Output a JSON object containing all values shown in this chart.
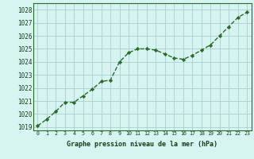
{
  "x": [
    0,
    1,
    2,
    3,
    4,
    5,
    6,
    7,
    8,
    9,
    10,
    11,
    12,
    13,
    14,
    15,
    16,
    17,
    18,
    19,
    20,
    21,
    22,
    23
  ],
  "y": [
    1019.1,
    1019.6,
    1020.2,
    1020.9,
    1020.9,
    1021.4,
    1021.9,
    1022.5,
    1022.6,
    1024.0,
    1024.7,
    1025.0,
    1025.0,
    1024.9,
    1024.6,
    1024.3,
    1024.2,
    1024.5,
    1024.9,
    1025.3,
    1026.0,
    1026.7,
    1027.4,
    1027.8
  ],
  "line_color": "#2d6a2d",
  "marker": "D",
  "marker_size": 2.2,
  "bg_color": "#d6f5f0",
  "grid_color": "#aacfcf",
  "xlabel": "Graphe pression niveau de la mer (hPa)",
  "xlabel_color": "#1a3a1a",
  "tick_color": "#1a3a1a",
  "ylim": [
    1018.75,
    1028.5
  ],
  "xlim": [
    -0.5,
    23.5
  ],
  "yticks": [
    1019,
    1020,
    1021,
    1022,
    1023,
    1024,
    1025,
    1026,
    1027,
    1028
  ],
  "xticks": [
    0,
    1,
    2,
    3,
    4,
    5,
    6,
    7,
    8,
    9,
    10,
    11,
    12,
    13,
    14,
    15,
    16,
    17,
    18,
    19,
    20,
    21,
    22,
    23
  ],
  "linewidth": 1.0,
  "spine_color": "#2d6a2d"
}
